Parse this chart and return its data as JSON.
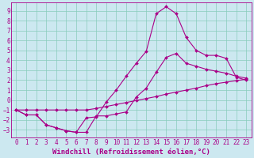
{
  "background_color": "#cce8f0",
  "grid_color": "#88ccbb",
  "line_color": "#aa0088",
  "marker_color": "#aa0088",
  "xlabel": "Windchill (Refroidissement éolien,°C)",
  "xlim": [
    -0.5,
    23.5
  ],
  "ylim": [
    -3.8,
    9.8
  ],
  "xticks": [
    0,
    1,
    2,
    3,
    4,
    5,
    6,
    7,
    8,
    9,
    10,
    11,
    12,
    13,
    14,
    15,
    16,
    17,
    18,
    19,
    20,
    21,
    22,
    23
  ],
  "yticks": [
    -3,
    -2,
    -1,
    0,
    1,
    2,
    3,
    4,
    5,
    6,
    7,
    8,
    9
  ],
  "line1_x": [
    0,
    1,
    2,
    3,
    4,
    5,
    6,
    7,
    8,
    9,
    10,
    11,
    12,
    13,
    14,
    15,
    16,
    17,
    18,
    19,
    20,
    21,
    22,
    23
  ],
  "line1_y": [
    -1.0,
    -1.5,
    -1.5,
    -2.5,
    -2.8,
    -3.1,
    -3.25,
    -3.25,
    -1.6,
    -1.6,
    -1.4,
    -1.2,
    0.3,
    1.2,
    2.8,
    4.3,
    4.7,
    3.7,
    3.4,
    3.1,
    2.9,
    2.7,
    2.4,
    2.2
  ],
  "line2_x": [
    0,
    1,
    2,
    3,
    4,
    5,
    6,
    7,
    8,
    9,
    10,
    11,
    12,
    13,
    14,
    15,
    16,
    17,
    18,
    19,
    20,
    21,
    22,
    23
  ],
  "line2_y": [
    -1.0,
    -1.5,
    -1.5,
    -2.5,
    -2.8,
    -3.1,
    -3.25,
    -1.8,
    -1.7,
    -0.2,
    1.0,
    2.4,
    3.7,
    4.9,
    8.7,
    9.4,
    8.7,
    6.3,
    5.0,
    4.5,
    4.5,
    4.2,
    2.3,
    2.0
  ],
  "line3_x": [
    0,
    1,
    2,
    3,
    4,
    5,
    6,
    7,
    8,
    9,
    10,
    11,
    12,
    13,
    14,
    15,
    16,
    17,
    18,
    19,
    20,
    21,
    22,
    23
  ],
  "line3_y": [
    -1.0,
    -1.0,
    -1.0,
    -1.0,
    -1.0,
    -1.0,
    -1.0,
    -1.0,
    -0.85,
    -0.65,
    -0.45,
    -0.25,
    -0.05,
    0.15,
    0.35,
    0.6,
    0.8,
    1.0,
    1.2,
    1.45,
    1.65,
    1.8,
    1.95,
    2.1
  ],
  "font_family": "monospace",
  "fontsize_tick": 5.5,
  "fontsize_label": 6.5,
  "marker_size": 2.0,
  "line_width": 0.8
}
